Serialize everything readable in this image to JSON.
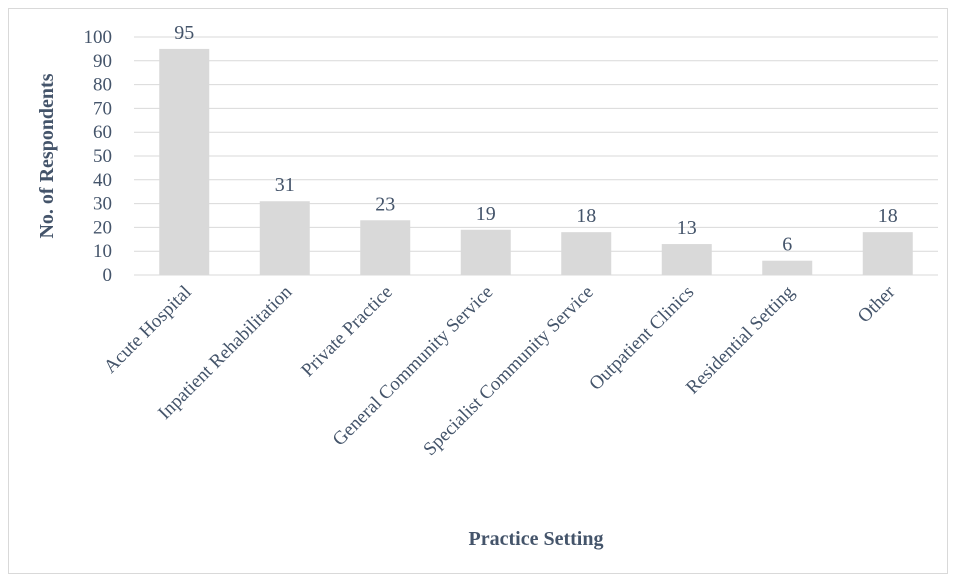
{
  "chart_data": {
    "type": "bar",
    "title": "",
    "xlabel": "Practice Setting",
    "ylabel": "No. of Respondents",
    "categories": [
      "Acute Hospital",
      "Inpatient Rehabilitation",
      "Private Practice",
      "General Community Service",
      "Specialist Community Service",
      "Outpatient Clinics",
      "Residential Setting",
      "Other"
    ],
    "values": [
      95,
      31,
      23,
      19,
      18,
      13,
      6,
      18
    ],
    "data_labels": [
      "95",
      "31",
      "23",
      "19",
      "18",
      "13",
      "6",
      "18"
    ],
    "yticks": [
      "0",
      "10",
      "20",
      "30",
      "40",
      "50",
      "60",
      "70",
      "80",
      "90",
      "100"
    ],
    "ylim": [
      0,
      100
    ],
    "grid": true,
    "legend": "none",
    "colors": {
      "bar": "#d9d9d9",
      "grid": "#d9d9d9",
      "text": "#44546a"
    }
  }
}
